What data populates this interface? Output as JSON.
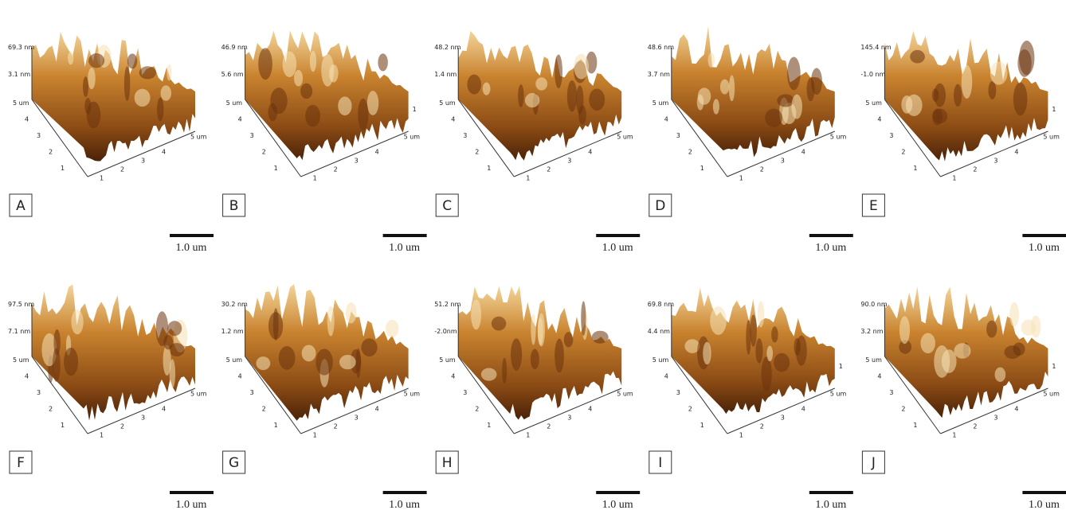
{
  "panels": [
    {
      "label": "A",
      "z_top": "69.3 nm",
      "z_mid": "3.1 nm",
      "y_ticks": [
        "5 um",
        "4",
        "3",
        "2",
        "1"
      ],
      "x_ticks": [
        "1",
        "2",
        "3",
        "4",
        "5 um"
      ],
      "scale": "1.0 um"
    },
    {
      "label": "B",
      "z_top": "46.9 nm",
      "z_mid": "5.6 nm",
      "y_ticks": [
        "5 um",
        "4",
        "3",
        "2",
        "1"
      ],
      "x_ticks": [
        "1",
        "2",
        "3",
        "4",
        "5 um"
      ],
      "side_tick": "1",
      "scale": "1.0 um"
    },
    {
      "label": "C",
      "z_top": "48.2 nm",
      "z_mid": "1.4 nm",
      "y_ticks": [
        "5 um",
        "4",
        "3",
        "2",
        "1"
      ],
      "x_ticks": [
        "1",
        "2",
        "3",
        "4",
        "5 um"
      ],
      "scale": "1.0 um"
    },
    {
      "label": "D",
      "z_top": "48.6 nm",
      "z_mid": "3.7 nm",
      "y_ticks": [
        "5 um",
        "4",
        "3",
        "2",
        "1"
      ],
      "x_ticks": [
        "1",
        "2",
        "3",
        "4",
        "5 um"
      ],
      "scale": "1.0 um"
    },
    {
      "label": "E",
      "z_top": "145.4 nm",
      "z_mid": "-1.0 nm",
      "y_ticks": [
        "5 um",
        "4",
        "3",
        "2",
        "1"
      ],
      "x_ticks": [
        "1",
        "2",
        "3",
        "4",
        "5 um"
      ],
      "side_tick": "1",
      "scale": "1.0 um"
    },
    {
      "label": "F",
      "z_top": "97.5 nm",
      "z_mid": "7.1 nm",
      "y_ticks": [
        "5 um",
        "4",
        "3",
        "2",
        "1"
      ],
      "x_ticks": [
        "1",
        "2",
        "3",
        "4",
        "5 um"
      ],
      "scale": "1.0 um"
    },
    {
      "label": "G",
      "z_top": "30.2 nm",
      "z_mid": "1.2 nm",
      "y_ticks": [
        "5 um",
        "4",
        "3",
        "2",
        "1"
      ],
      "x_ticks": [
        "1",
        "2",
        "3",
        "4",
        "5 um"
      ],
      "scale": "1.0 um"
    },
    {
      "label": "H",
      "z_top": "51.2 nm",
      "z_mid": "-2.0nm",
      "y_ticks": [
        "5 um",
        "4",
        "3",
        "2",
        "1"
      ],
      "x_ticks": [
        "1",
        "2",
        "3",
        "4",
        "5 um"
      ],
      "scale": "1.0 um"
    },
    {
      "label": "I",
      "z_top": "69.8 nm",
      "z_mid": "4.4 nm",
      "y_ticks": [
        "5 um",
        "4",
        "3",
        "2",
        "1"
      ],
      "x_ticks": [
        "1",
        "2",
        "3",
        "4",
        "5 um"
      ],
      "side_tick": "1",
      "scale": "1.0 um"
    },
    {
      "label": "J",
      "z_top": "90.0 nm",
      "z_mid": "3.2 nm",
      "y_ticks": [
        "5 um",
        "4",
        "3",
        "2",
        "1"
      ],
      "x_ticks": [
        "1",
        "2",
        "3",
        "4",
        "5 um"
      ],
      "side_tick": "1",
      "scale": "1.0 um"
    }
  ]
}
